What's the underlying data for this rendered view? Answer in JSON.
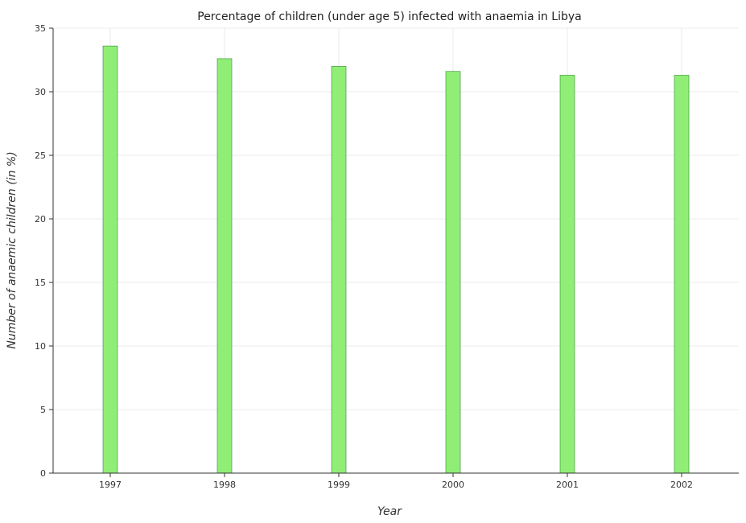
{
  "chart_data": {
    "type": "bar",
    "title": "Percentage of children (under age 5) infected with anaemia in Libya",
    "xlabel": "Year",
    "ylabel": "Number of anaemic children (in %)",
    "categories": [
      "1997",
      "1998",
      "1999",
      "2000",
      "2001",
      "2002"
    ],
    "values": [
      33.6,
      32.6,
      32.0,
      31.6,
      31.3,
      31.3
    ],
    "ylim": [
      0,
      35
    ],
    "yticks": [
      "0",
      "5",
      "10",
      "15",
      "20",
      "25",
      "30",
      "35"
    ],
    "grid": true,
    "bar_color": "#90ee77",
    "bar_edge_color": "#2e8b2e"
  }
}
